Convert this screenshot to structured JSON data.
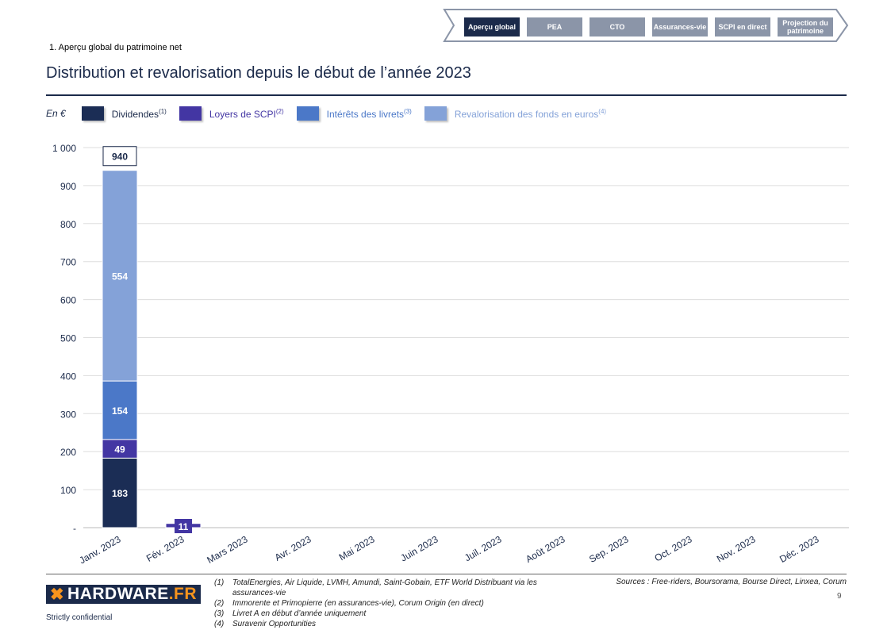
{
  "nav": {
    "tabs": [
      {
        "label": "Aperçu global",
        "active": true
      },
      {
        "label": "PEA"
      },
      {
        "label": "CTO"
      },
      {
        "label": "Assurances-vie"
      },
      {
        "label": "SCPI en direct"
      },
      {
        "label": "Projection du patrimoine"
      }
    ]
  },
  "section": "1. Aperçu global du patrimoine net",
  "title": "Distribution et revalorisation depuis le début de l’année 2023",
  "legend": {
    "unit": "En €",
    "items": [
      {
        "label": "Dividendes",
        "sup": "(1)",
        "color": "#1b2d55",
        "text_color": "#1b2a4a"
      },
      {
        "label": "Loyers de SCPI",
        "sup": "(2)",
        "color": "#4336a3",
        "text_color": "#4336a3"
      },
      {
        "label": "Intérêts des livrets",
        "sup": "(3)",
        "color": "#4b78c8",
        "text_color": "#4b78c8"
      },
      {
        "label": "Revalorisation  des fonds en euros",
        "sup": "(4)",
        "color": "#84a2d8",
        "text_color": "#84a2d8"
      }
    ]
  },
  "chart_data": {
    "type": "bar",
    "stacked": true,
    "categories": [
      "Janv. 2023",
      "Fév. 2023",
      "Mars 2023",
      "Avr. 2023",
      "Mai 2023",
      "Juin 2023",
      "Juil. 2023",
      "Août 2023",
      "Sep. 2023",
      "Oct. 2023",
      "Nov. 2023",
      "Déc. 2023"
    ],
    "series": [
      {
        "name": "Dividendes",
        "values": [
          183,
          0,
          0,
          0,
          0,
          0,
          0,
          0,
          0,
          0,
          0,
          0
        ]
      },
      {
        "name": "Loyers de SCPI",
        "values": [
          49,
          11,
          0,
          0,
          0,
          0,
          0,
          0,
          0,
          0,
          0,
          0
        ]
      },
      {
        "name": "Intérêts des livrets",
        "values": [
          154,
          0,
          0,
          0,
          0,
          0,
          0,
          0,
          0,
          0,
          0,
          0
        ]
      },
      {
        "name": "Revalorisation des fonds en euros",
        "values": [
          554,
          0,
          0,
          0,
          0,
          0,
          0,
          0,
          0,
          0,
          0,
          0
        ]
      }
    ],
    "totals": [
      940,
      null,
      null,
      null,
      null,
      null,
      null,
      null,
      null,
      null,
      null,
      null
    ],
    "yticks": [
      "-",
      "100",
      "200",
      "300",
      "400",
      "500",
      "600",
      "700",
      "800",
      "900",
      "1 000"
    ],
    "ylim": [
      0,
      1000
    ],
    "grid": true
  },
  "footer": {
    "logo": {
      "main": "HARDWARE",
      "suffix": ".FR"
    },
    "confidential": "Strictly confidential",
    "notes": [
      {
        "n": "(1)",
        "t": "TotalEnergies, Air Liquide, LVMH, Amundi, Saint-Gobain, ETF World Distribuant via les assurances-vie"
      },
      {
        "n": "(2)",
        "t": "Immorente et Primopierre (en assurances-vie), Corum Origin (en direct)"
      },
      {
        "n": "(3)",
        "t": "Livret A en début d’année uniquement"
      },
      {
        "n": "(4)",
        "t": "Suravenir Opportunities"
      }
    ],
    "sources": "Sources : Free-riders, Boursorama, Bourse Direct, Linxea, Corum",
    "page": "9"
  }
}
